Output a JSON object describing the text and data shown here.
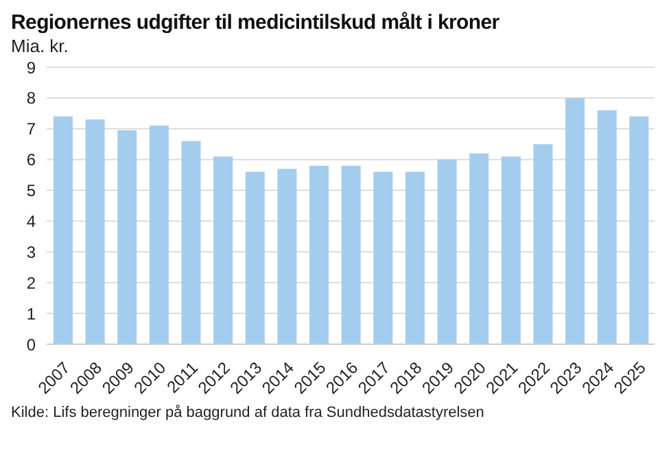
{
  "chart_data": {
    "type": "bar",
    "title": "Regionernes udgifter til medicintilskud målt i kroner",
    "ylabel": "Mia. kr.",
    "categories": [
      "2007",
      "2008",
      "2009",
      "2010",
      "2011",
      "2012",
      "2013",
      "2014",
      "2015",
      "2016",
      "2017",
      "2018",
      "2019",
      "2020",
      "2021",
      "2022",
      "2023",
      "2024",
      "2025"
    ],
    "values": [
      7.4,
      7.3,
      6.95,
      7.1,
      6.6,
      6.1,
      5.6,
      5.7,
      5.8,
      5.8,
      5.6,
      5.6,
      6.0,
      6.2,
      6.1,
      6.5,
      8.0,
      7.6,
      7.4
    ],
    "color": "#a3cdee",
    "ylim": [
      0,
      9
    ],
    "yticks": [
      0,
      1,
      2,
      3,
      4,
      5,
      6,
      7,
      8,
      9
    ],
    "grid": "y",
    "annotations": [
      "Kilde: Lifs beregninger på baggrund af data fra Sundhedsdatastyrelsen"
    ]
  }
}
